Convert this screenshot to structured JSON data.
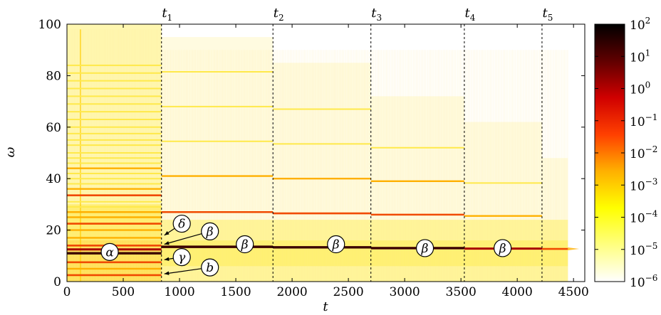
{
  "chart_data": {
    "type": "heatmap",
    "xlabel": "t",
    "ylabel": "ω",
    "xlim": [
      0,
      4600
    ],
    "ylim": [
      0,
      100
    ],
    "xticks": [
      0,
      500,
      1000,
      1500,
      2000,
      2500,
      3000,
      3500,
      4000,
      4500
    ],
    "yticks": [
      0,
      20,
      40,
      60,
      80,
      100
    ],
    "colorbar": {
      "scale": "log",
      "range": [
        1e-06,
        100
      ],
      "tick_labels": [
        {
          "base": "10",
          "exp": "2"
        },
        {
          "base": "10",
          "exp": "1"
        },
        {
          "base": "10",
          "exp": "0"
        },
        {
          "base": "10",
          "exp": "−1"
        },
        {
          "base": "10",
          "exp": "−2"
        },
        {
          "base": "10",
          "exp": "−3"
        },
        {
          "base": "10",
          "exp": "−4"
        },
        {
          "base": "10",
          "exp": "−5"
        },
        {
          "base": "10",
          "exp": "−6"
        }
      ],
      "colors": [
        "#ffffff",
        "#ffff80",
        "#ffff00",
        "#ffb000",
        "#ff4000",
        "#d00000",
        "#600000",
        "#000000"
      ]
    },
    "transitions": [
      {
        "label": "t",
        "sub": "1",
        "t": 840
      },
      {
        "label": "t",
        "sub": "2",
        "t": 1830
      },
      {
        "label": "t",
        "sub": "3",
        "t": 2700
      },
      {
        "label": "t",
        "sub": "4",
        "t": 3530
      },
      {
        "label": "t",
        "sub": "5",
        "t": 4220
      }
    ],
    "phase0_lines": [
      {
        "omega": 2.5,
        "level": 3
      },
      {
        "omega": 5,
        "level": 2
      },
      {
        "omega": 7.5,
        "level": 3
      },
      {
        "omega": 11,
        "level": 5
      },
      {
        "omega": 12.5,
        "level": 4
      },
      {
        "omega": 14,
        "level": 3
      },
      {
        "omega": 17,
        "level": 2
      },
      {
        "omega": 20,
        "level": 2
      },
      {
        "omega": 22.5,
        "level": 3
      },
      {
        "omega": 25,
        "level": 2
      },
      {
        "omega": 27,
        "level": 2
      },
      {
        "omega": 29,
        "level": 1
      },
      {
        "omega": 31,
        "level": 1
      },
      {
        "omega": 33.5,
        "level": 3
      },
      {
        "omega": 36,
        "level": 2
      },
      {
        "omega": 38,
        "level": 1
      },
      {
        "omega": 40,
        "level": 1
      },
      {
        "omega": 42,
        "level": 1
      },
      {
        "omega": 44,
        "level": 2
      },
      {
        "omega": 46,
        "level": 1
      },
      {
        "omega": 48,
        "level": 1
      },
      {
        "omega": 50,
        "level": 1
      },
      {
        "omega": 53,
        "level": 1
      },
      {
        "omega": 55,
        "level": 1
      },
      {
        "omega": 57.5,
        "level": 1
      },
      {
        "omega": 60,
        "level": 1
      },
      {
        "omega": 63,
        "level": 1
      },
      {
        "omega": 66,
        "level": 1
      },
      {
        "omega": 69,
        "level": 1
      },
      {
        "omega": 72,
        "level": 1
      },
      {
        "omega": 75,
        "level": 1
      },
      {
        "omega": 78,
        "level": 1
      },
      {
        "omega": 81,
        "level": 1
      },
      {
        "omega": 84,
        "level": 1
      }
    ],
    "segments": [
      {
        "t0": 840,
        "t1": 1830,
        "lines": [
          {
            "omega": 13.5,
            "level": 5
          },
          {
            "omega": 27,
            "level": 3
          },
          {
            "omega": 41,
            "level": 2
          },
          {
            "omega": 54.5,
            "level": 1
          },
          {
            "omega": 68,
            "level": 1
          },
          {
            "omega": 81.5,
            "level": 1
          }
        ]
      },
      {
        "t0": 1830,
        "t1": 2700,
        "lines": [
          {
            "omega": 13.3,
            "level": 5
          },
          {
            "omega": 26.5,
            "level": 3
          },
          {
            "omega": 40,
            "level": 2
          },
          {
            "omega": 53.5,
            "level": 1
          },
          {
            "omega": 67,
            "level": 1
          }
        ]
      },
      {
        "t0": 2700,
        "t1": 3530,
        "lines": [
          {
            "omega": 13,
            "level": 5
          },
          {
            "omega": 26,
            "level": 3
          },
          {
            "omega": 39,
            "level": 2
          },
          {
            "omega": 52,
            "level": 1
          }
        ]
      },
      {
        "t0": 3530,
        "t1": 4220,
        "lines": [
          {
            "omega": 12.8,
            "level": 4
          },
          {
            "omega": 25.5,
            "level": 2
          },
          {
            "omega": 38.3,
            "level": 1
          }
        ]
      },
      {
        "t0": 4220,
        "t1": 4450,
        "lines": [
          {
            "omega": 12.7,
            "level": 3
          }
        ]
      }
    ],
    "annotations": [
      {
        "label": "α",
        "t": 380,
        "omega": 11.5
      },
      {
        "label": "δ",
        "t": 1020,
        "omega": 22.5,
        "arrow_to": [
          840,
          18
        ]
      },
      {
        "label": "β",
        "t": 1270,
        "omega": 19.5,
        "arrow_to": [
          840,
          14.5
        ]
      },
      {
        "label": "γ",
        "t": 1020,
        "omega": 9.5,
        "arrow_to": [
          840,
          8.5
        ]
      },
      {
        "label": "b",
        "t": 1270,
        "omega": 5.5,
        "arrow_to": [
          840,
          3
        ]
      },
      {
        "label": "β",
        "t": 1580,
        "omega": 14.5
      },
      {
        "label": "β",
        "t": 2390,
        "omega": 14.5
      },
      {
        "label": "β",
        "t": 3180,
        "omega": 13
      },
      {
        "label": "β",
        "t": 3870,
        "omega": 13
      }
    ]
  }
}
